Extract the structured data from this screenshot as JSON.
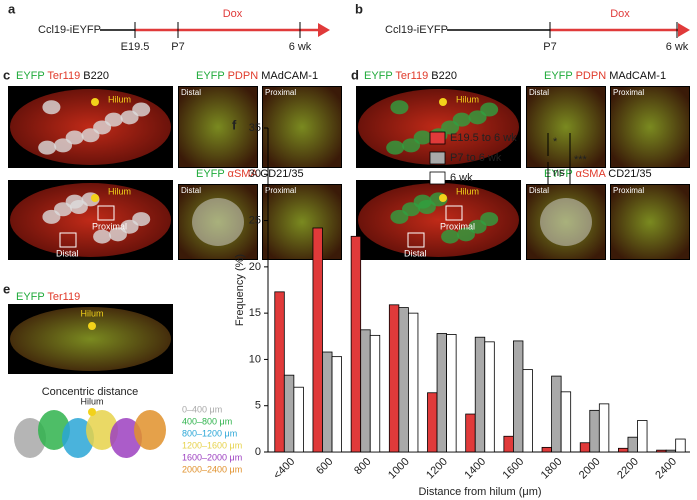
{
  "panels": {
    "a": {
      "label": "a",
      "construct": "Ccl19-iEYFP",
      "treatment": "Dox",
      "timepoints": [
        "E19.5",
        "P7",
        "6 wk"
      ]
    },
    "b": {
      "label": "b",
      "construct": "Ccl19-iEYFP",
      "treatment": "Dox",
      "timepoints": [
        "P7",
        "6 wk"
      ]
    },
    "c": {
      "label": "c",
      "stain1": [
        "EYFP",
        "Ter119",
        "B220"
      ],
      "stain2": [
        "EYFP",
        "PDPN",
        "MAdCAM-1"
      ],
      "stain3": [
        "EYFP",
        "αSMA",
        "CD21/35"
      ],
      "hilum": "Hilum",
      "distal": "Distal",
      "proximal": "Proximal"
    },
    "d": {
      "label": "d",
      "stain1": [
        "EYFP",
        "Ter119",
        "B220"
      ],
      "stain2": [
        "EYFP",
        "PDPN",
        "MAdCAM-1"
      ],
      "stain3": [
        "EYFP",
        "αSMA",
        "CD21/35"
      ],
      "hilum": "Hilum",
      "distal": "Distal",
      "proximal": "Proximal"
    },
    "e": {
      "label": "e",
      "stain": [
        "EYFP",
        "Ter119"
      ],
      "hilum": "Hilum",
      "subtitle": "Concentric distance",
      "ranges": [
        "0–400 μm",
        "400–800 μm",
        "800–1200 μm",
        "1200–1600 μm",
        "1600–2000 μm",
        "2000–2400 μm"
      ],
      "range_colors": [
        "#a8a8a8",
        "#2fb34c",
        "#2aa6d6",
        "#e6d24a",
        "#9c3fc0",
        "#e0902a"
      ]
    }
  },
  "chart_data": {
    "type": "bar",
    "label": "f",
    "categories": [
      "<400",
      "600",
      "800",
      "1000",
      "1200",
      "1400",
      "1600",
      "1800",
      "2000",
      "2200",
      "2400"
    ],
    "series": [
      {
        "name": "E19.5 to 6 wk",
        "color": "#e03a3a",
        "values": [
          17.3,
          24.2,
          23.3,
          15.9,
          6.4,
          4.1,
          1.7,
          0.5,
          1,
          0.4,
          0.2
        ]
      },
      {
        "name": "P7 to 6 wk",
        "color": "#a9a9a9",
        "values": [
          8.3,
          10.8,
          13.2,
          15.6,
          12.8,
          12.4,
          12,
          8.2,
          4.5,
          1.6,
          0.2
        ]
      },
      {
        "name": "6 wk",
        "color": "#ffffff",
        "values": [
          7,
          10.3,
          12.6,
          15,
          12.7,
          11.9,
          8.9,
          6.5,
          5.2,
          3.4,
          1.4
        ]
      }
    ],
    "ylim": [
      0,
      35
    ],
    "yticks": [
      0,
      5,
      10,
      15,
      20,
      25,
      30,
      35
    ],
    "ylabel": "Frequency (%)",
    "xlabel": "Distance from hilum (μm)",
    "significance": [
      "*",
      "ns",
      "***"
    ]
  }
}
